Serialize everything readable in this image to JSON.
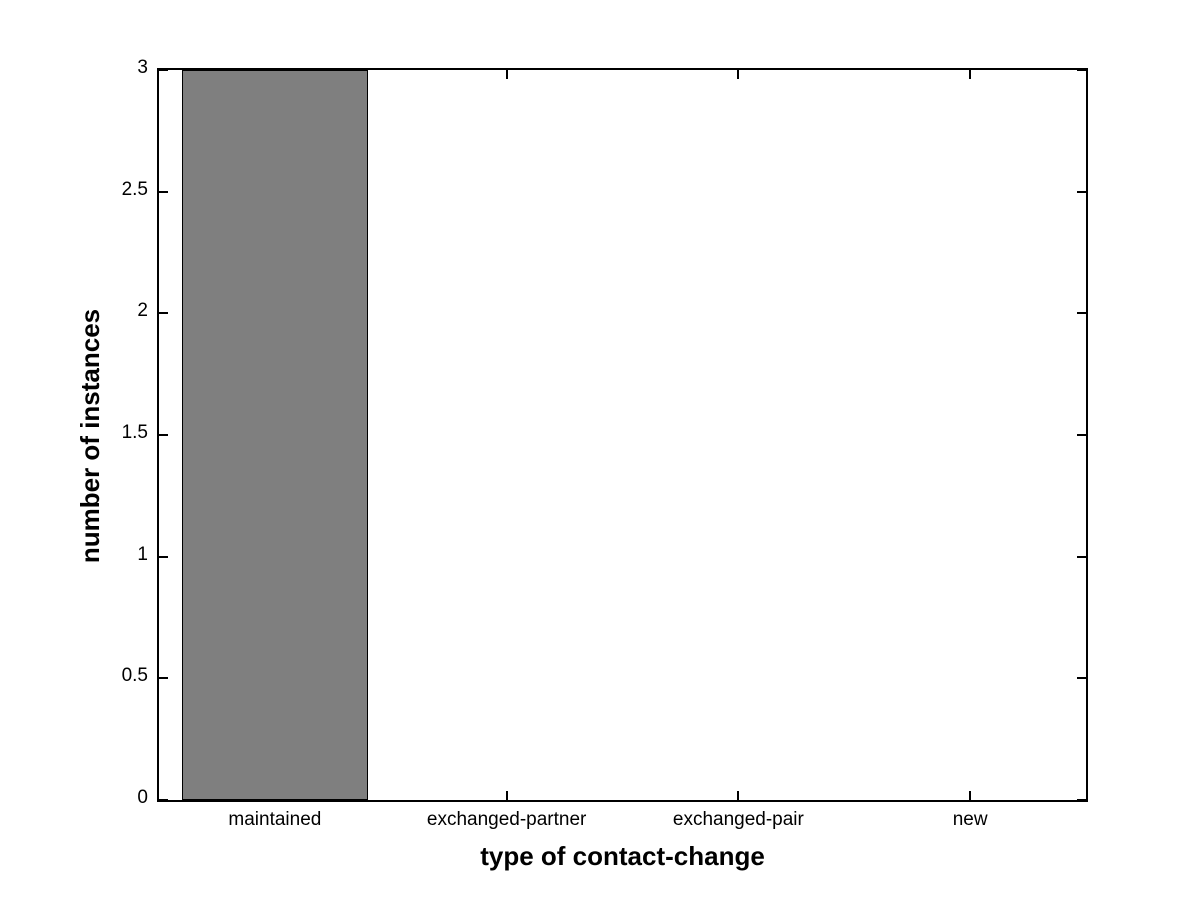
{
  "figure": {
    "background": "#ffffff"
  },
  "chart_data": {
    "type": "bar",
    "title": "",
    "categories": [
      "maintained",
      "exchanged-partner",
      "exchanged-pair",
      "new"
    ],
    "values": [
      3,
      0,
      0,
      0
    ],
    "xlabel": "type of contact-change",
    "ylabel": "number of instances",
    "ylim": [
      0,
      3
    ],
    "yticks": [
      0,
      0.5,
      1,
      1.5,
      2,
      2.5,
      3
    ],
    "ytick_labels": [
      "0",
      "0.5",
      "1",
      "1.5",
      "2",
      "2.5",
      "3"
    ],
    "bar_width_fraction": 0.8,
    "bar_color": "#7f7f7f",
    "bar_edge_color": "#000000",
    "axis_color": "#000000",
    "grid": false,
    "box": true,
    "tick_direction": "in",
    "legend": "none"
  }
}
